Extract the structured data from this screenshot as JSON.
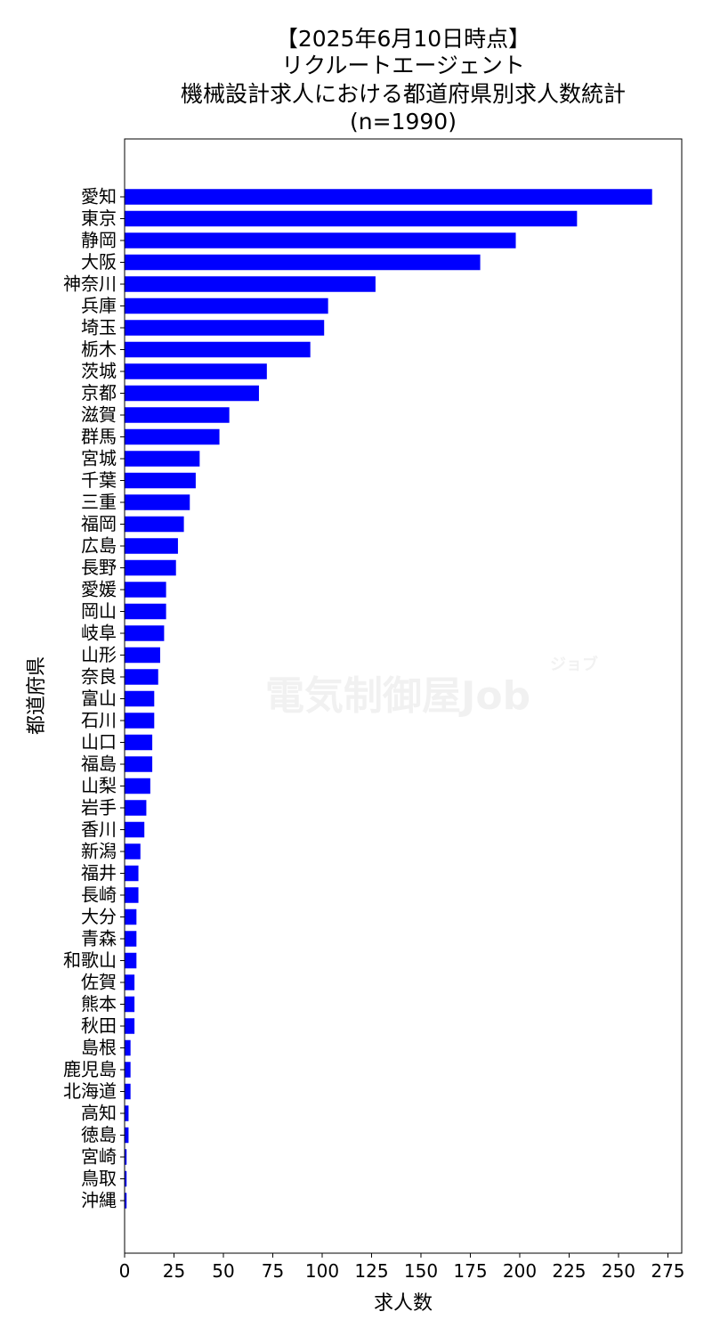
{
  "chart_data": {
    "type": "bar",
    "orientation": "horizontal",
    "title_lines": [
      "【2025年6月10日時点】",
      "リクルートエージェント",
      "機械設計求人における都道府県別求人数統計",
      "(n=1990)"
    ],
    "xlabel": "求人数",
    "ylabel": "都道府県",
    "xlim": [
      0,
      282
    ],
    "xticks": [
      0,
      25,
      50,
      75,
      100,
      125,
      150,
      175,
      200,
      225,
      250,
      275
    ],
    "bar_color": "#0000ff",
    "watermark": {
      "main": "電気制御屋Job",
      "sub": "ジョブ"
    },
    "categories": [
      "愛知",
      "東京",
      "静岡",
      "大阪",
      "神奈川",
      "兵庫",
      "埼玉",
      "栃木",
      "茨城",
      "京都",
      "滋賀",
      "群馬",
      "宮城",
      "千葉",
      "三重",
      "福岡",
      "広島",
      "長野",
      "愛媛",
      "岡山",
      "岐阜",
      "山形",
      "奈良",
      "富山",
      "石川",
      "山口",
      "福島",
      "山梨",
      "岩手",
      "香川",
      "新潟",
      "福井",
      "長崎",
      "大分",
      "青森",
      "和歌山",
      "佐賀",
      "熊本",
      "秋田",
      "島根",
      "鹿児島",
      "北海道",
      "高知",
      "徳島",
      "宮崎",
      "鳥取",
      "沖縄"
    ],
    "values": [
      267,
      229,
      198,
      180,
      127,
      103,
      101,
      94,
      72,
      68,
      53,
      48,
      38,
      36,
      33,
      30,
      27,
      26,
      21,
      21,
      20,
      18,
      17,
      15,
      15,
      14,
      14,
      13,
      11,
      10,
      8,
      7,
      7,
      6,
      6,
      6,
      5,
      5,
      5,
      3,
      3,
      3,
      2,
      2,
      1,
      1,
      1
    ]
  }
}
